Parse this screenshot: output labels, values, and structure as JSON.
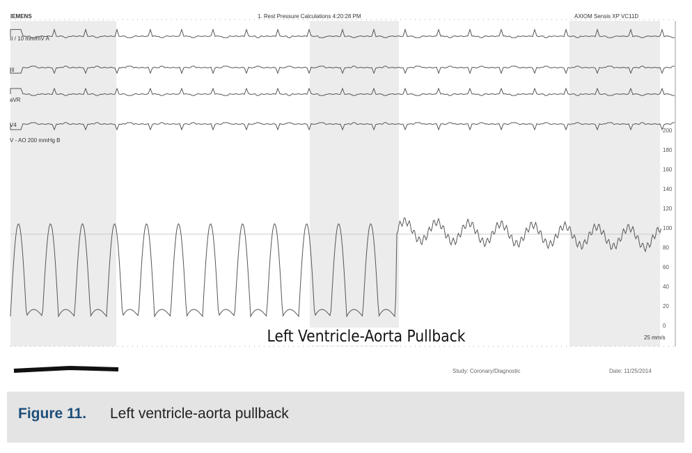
{
  "header": {
    "brand": "IEMENS",
    "title": "1. Rest Pressure Calculations 4:20:28 PM",
    "system": "AXIOM Sensis XP VC11D"
  },
  "leads": [
    "II / 10 mm/mV  A",
    "III",
    "aVR",
    "V4"
  ],
  "pressure_channel": "V - AO  200 mmHg  B",
  "y_ticks": [
    "200",
    "180",
    "160",
    "140",
    "120",
    "100",
    "80",
    "60",
    "40",
    "20",
    "0"
  ],
  "speed": "25 mm/s",
  "overlay_label": "Left Ventricle-Aorta Pullback",
  "footer": {
    "study": "Study: Coronary/Diagnostic",
    "date": "Date: 11/25/2014"
  },
  "caption": {
    "number": "Figure 11.",
    "text": "Left ventricle-aorta pullback"
  },
  "colors": {
    "caption_number": "#1d4e7a",
    "caption_bg": "#e4e4e4",
    "trace": "#555555"
  }
}
